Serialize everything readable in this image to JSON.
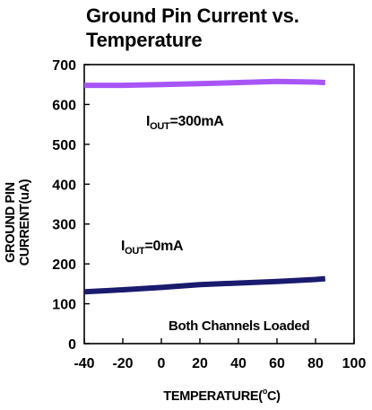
{
  "chart_data": {
    "type": "line",
    "title_line1": "Ground Pin Current vs.",
    "title_line2": "Temperature",
    "xlabel": "TEMPERATURE(",
    "xlabel_sup": "o",
    "xlabel_tail": "C)",
    "ylabel": "GROUND PIN CURRENT(uA)",
    "xlim": [
      -40,
      100
    ],
    "ylim": [
      0,
      700
    ],
    "x_ticks": [
      -40,
      -20,
      0,
      20,
      40,
      60,
      80,
      100
    ],
    "y_ticks": [
      0,
      100,
      200,
      300,
      400,
      500,
      600,
      700
    ],
    "grid": false,
    "note": "Both Channels Loaded",
    "series": [
      {
        "label_prefix": "I",
        "label_sub": "OUT",
        "label_suffix": "=300mA",
        "color": "#a855f7",
        "x": [
          -40,
          -20,
          0,
          20,
          40,
          60,
          80,
          85
        ],
        "y": [
          648,
          648,
          650,
          652,
          655,
          658,
          656,
          655
        ]
      },
      {
        "label_prefix": "I",
        "label_sub": "OUT",
        "label_suffix": "=0mA",
        "color": "#1a1a6e",
        "x": [
          -40,
          -20,
          0,
          20,
          40,
          60,
          80,
          85
        ],
        "y": [
          130,
          135,
          141,
          148,
          152,
          156,
          161,
          163
        ]
      }
    ]
  }
}
